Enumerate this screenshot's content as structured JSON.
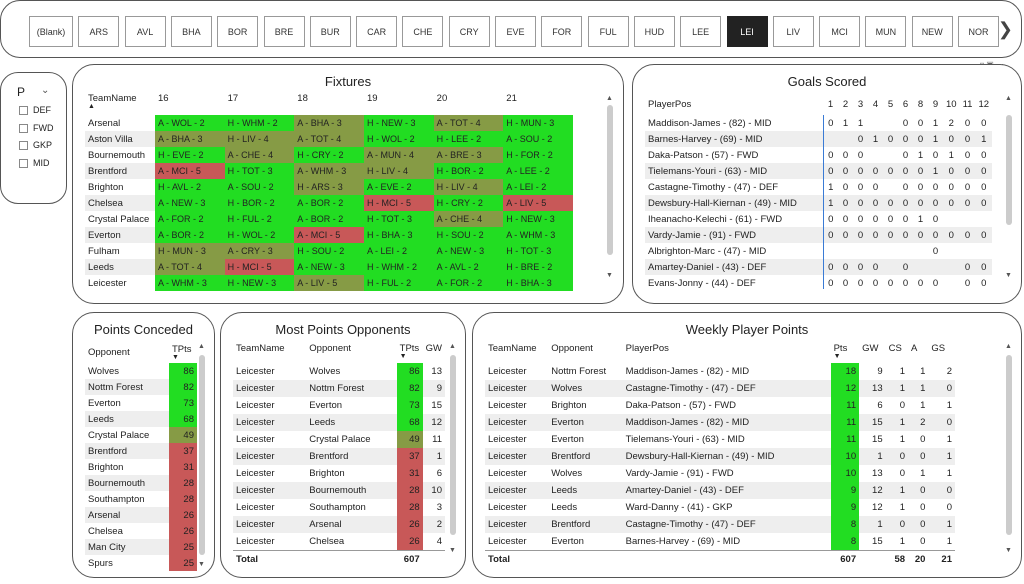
{
  "teams_slicer": {
    "teams": [
      "(Blank)",
      "ARS",
      "AVL",
      "BHA",
      "BOR",
      "BRE",
      "BUR",
      "CAR",
      "CHE",
      "CRY",
      "EVE",
      "FOR",
      "FUL",
      "HUD",
      "LEE",
      "LEI",
      "LIV",
      "MCI",
      "MUN",
      "NEW",
      "NOR"
    ],
    "selected": "LEI",
    "next_icon": "chevron-right-icon"
  },
  "position_slicer": {
    "title": "P",
    "options": [
      "DEF",
      "FWD",
      "GKP",
      "MID"
    ]
  },
  "fixtures": {
    "title": "Fixtures",
    "col_header": "TeamName",
    "gws": [
      "16",
      "17",
      "18",
      "19",
      "20",
      "21"
    ],
    "rows": [
      {
        "team": "Arsenal",
        "cells": [
          [
            "A - WOL - 2",
            "g"
          ],
          [
            "H - WHM - 2",
            "g"
          ],
          [
            "A - BHA - 3",
            "o"
          ],
          [
            "H - NEW - 3",
            "g"
          ],
          [
            "A - TOT - 4",
            "o"
          ],
          [
            "H - MUN - 3",
            "g"
          ]
        ]
      },
      {
        "team": "Aston Villa",
        "cells": [
          [
            "A - BHA - 3",
            "o"
          ],
          [
            "H - LIV - 4",
            "o"
          ],
          [
            "A - TOT - 4",
            "o"
          ],
          [
            "H - WOL - 2",
            "g"
          ],
          [
            "H - LEE - 2",
            "g"
          ],
          [
            "A - SOU - 2",
            "g"
          ]
        ]
      },
      {
        "team": "Bournemouth",
        "cells": [
          [
            "H - EVE - 2",
            "g"
          ],
          [
            "A - CHE - 4",
            "o"
          ],
          [
            "H - CRY - 2",
            "g"
          ],
          [
            "A - MUN - 4",
            "o"
          ],
          [
            "A - BRE - 3",
            "o"
          ],
          [
            "H - FOR - 2",
            "g"
          ]
        ]
      },
      {
        "team": "Brentford",
        "cells": [
          [
            "A - MCI - 5",
            "r"
          ],
          [
            "H - TOT - 3",
            "g"
          ],
          [
            "A - WHM - 3",
            "o"
          ],
          [
            "H - LIV - 4",
            "o"
          ],
          [
            "H - BOR - 2",
            "g"
          ],
          [
            "A - LEE - 2",
            "g"
          ]
        ]
      },
      {
        "team": "Brighton",
        "cells": [
          [
            "H - AVL - 2",
            "g"
          ],
          [
            "A - SOU - 2",
            "g"
          ],
          [
            "H - ARS - 3",
            "o"
          ],
          [
            "A - EVE - 2",
            "g"
          ],
          [
            "H - LIV - 4",
            "o"
          ],
          [
            "A - LEI - 2",
            "g"
          ]
        ]
      },
      {
        "team": "Chelsea",
        "cells": [
          [
            "A - NEW - 3",
            "g"
          ],
          [
            "H - BOR - 2",
            "g"
          ],
          [
            "A - BOR - 2",
            "g"
          ],
          [
            "H - MCI - 5",
            "r"
          ],
          [
            "H - CRY - 2",
            "g"
          ],
          [
            "A - LIV - 5",
            "r"
          ]
        ]
      },
      {
        "team": "Crystal Palace",
        "cells": [
          [
            "A - FOR - 2",
            "g"
          ],
          [
            "H - FUL - 2",
            "g"
          ],
          [
            "A - BOR - 2",
            "g"
          ],
          [
            "H - TOT - 3",
            "g"
          ],
          [
            "A - CHE - 4",
            "o"
          ],
          [
            "H - NEW - 3",
            "g"
          ]
        ]
      },
      {
        "team": "Everton",
        "cells": [
          [
            "A - BOR - 2",
            "g"
          ],
          [
            "H - WOL - 2",
            "g"
          ],
          [
            "A - MCI - 5",
            "r"
          ],
          [
            "H - BHA - 3",
            "g"
          ],
          [
            "H - SOU - 2",
            "g"
          ],
          [
            "A - WHM - 3",
            "g"
          ]
        ]
      },
      {
        "team": "Fulham",
        "cells": [
          [
            "H - MUN - 3",
            "o"
          ],
          [
            "A - CRY - 3",
            "o"
          ],
          [
            "H - SOU - 2",
            "g"
          ],
          [
            "A - LEI - 2",
            "g"
          ],
          [
            "A - NEW - 3",
            "g"
          ],
          [
            "H - TOT - 3",
            "g"
          ]
        ]
      },
      {
        "team": "Leeds",
        "cells": [
          [
            "A - TOT - 4",
            "o"
          ],
          [
            "H - MCI - 5",
            "r"
          ],
          [
            "A - NEW - 3",
            "g"
          ],
          [
            "H - WHM - 2",
            "g"
          ],
          [
            "A - AVL - 2",
            "g"
          ],
          [
            "H - BRE - 2",
            "g"
          ]
        ]
      },
      {
        "team": "Leicester",
        "cells": [
          [
            "A - WHM - 3",
            "g"
          ],
          [
            "H - NEW - 3",
            "g"
          ],
          [
            "A - LIV - 5",
            "o"
          ],
          [
            "H - FUL - 2",
            "g"
          ],
          [
            "A - FOR - 2",
            "g"
          ],
          [
            "H - BHA - 3",
            "g"
          ]
        ]
      }
    ]
  },
  "goals": {
    "title": "Goals Scored",
    "col_header": "PlayerPos",
    "gws": [
      "1",
      "2",
      "3",
      "4",
      "5",
      "6",
      "8",
      "9",
      "10",
      "11",
      "12"
    ],
    "rows": [
      [
        "Maddison-James - (82) - MID",
        [
          "0",
          "1",
          "1",
          "",
          "",
          "0",
          "0",
          "1",
          "2",
          "0",
          "0"
        ]
      ],
      [
        "Barnes-Harvey - (69) - MID",
        [
          "",
          "",
          "0",
          "1",
          "0",
          "0",
          "0",
          "1",
          "0",
          "0",
          "1"
        ]
      ],
      [
        "Daka-Patson - (57) - FWD",
        [
          "0",
          "0",
          "0",
          "",
          "",
          "0",
          "1",
          "0",
          "1",
          "0",
          "0"
        ]
      ],
      [
        "Tielemans-Youri - (63) - MID",
        [
          "0",
          "0",
          "0",
          "0",
          "0",
          "0",
          "0",
          "1",
          "0",
          "0",
          "0"
        ]
      ],
      [
        "Castagne-Timothy - (47) - DEF",
        [
          "1",
          "0",
          "0",
          "0",
          "",
          "0",
          "0",
          "0",
          "0",
          "0",
          "0"
        ]
      ],
      [
        "Dewsbury-Hall-Kiernan - (49) - MID",
        [
          "1",
          "0",
          "0",
          "0",
          "0",
          "0",
          "0",
          "0",
          "0",
          "0",
          "0"
        ]
      ],
      [
        "Iheanacho-Kelechi - (61) - FWD",
        [
          "0",
          "0",
          "0",
          "0",
          "0",
          "0",
          "1",
          "0",
          "",
          "",
          ""
        ]
      ],
      [
        "Vardy-Jamie - (91) - FWD",
        [
          "0",
          "0",
          "0",
          "0",
          "0",
          "0",
          "0",
          "0",
          "0",
          "0",
          "0"
        ]
      ],
      [
        "Albrighton-Marc - (47) - MID",
        [
          "",
          "",
          "",
          "",
          "",
          "",
          "",
          "0",
          "",
          "",
          ""
        ]
      ],
      [
        "Amartey-Daniel - (43) - DEF",
        [
          "0",
          "0",
          "0",
          "0",
          "",
          "0",
          "",
          "",
          "",
          "0",
          "0"
        ]
      ],
      [
        "Evans-Jonny - (44) - DEF",
        [
          "0",
          "0",
          "0",
          "0",
          "0",
          "0",
          "0",
          "0",
          "",
          "0",
          "0"
        ]
      ]
    ]
  },
  "points_conceded": {
    "title": "Points Conceded",
    "headers": [
      "Opponent",
      "TPts"
    ],
    "rows": [
      [
        "Wolves",
        "86"
      ],
      [
        "Nottm Forest",
        "82"
      ],
      [
        "Everton",
        "73"
      ],
      [
        "Leeds",
        "68"
      ],
      [
        "Crystal Palace",
        "49"
      ],
      [
        "Brentford",
        "37"
      ],
      [
        "Brighton",
        "31"
      ],
      [
        "Bournemouth",
        "28"
      ],
      [
        "Southampton",
        "28"
      ],
      [
        "Arsenal",
        "26"
      ],
      [
        "Chelsea",
        "26"
      ],
      [
        "Man City",
        "25"
      ],
      [
        "Spurs",
        "25"
      ]
    ]
  },
  "most_points": {
    "title": "Most Points Opponents",
    "headers": [
      "TeamName",
      "Opponent",
      "TPts",
      "GW"
    ],
    "rows": [
      [
        "Leicester",
        "Wolves",
        "86",
        "13"
      ],
      [
        "Leicester",
        "Nottm Forest",
        "82",
        "9"
      ],
      [
        "Leicester",
        "Everton",
        "73",
        "15"
      ],
      [
        "Leicester",
        "Leeds",
        "68",
        "12"
      ],
      [
        "Leicester",
        "Crystal Palace",
        "49",
        "11"
      ],
      [
        "Leicester",
        "Brentford",
        "37",
        "1"
      ],
      [
        "Leicester",
        "Brighton",
        "31",
        "6"
      ],
      [
        "Leicester",
        "Bournemouth",
        "28",
        "10"
      ],
      [
        "Leicester",
        "Southampton",
        "28",
        "3"
      ],
      [
        "Leicester",
        "Arsenal",
        "26",
        "2"
      ],
      [
        "Leicester",
        "Chelsea",
        "26",
        "4"
      ]
    ],
    "total_label": "Total",
    "total_value": "607"
  },
  "weekly": {
    "title": "Weekly Player Points",
    "headers": [
      "TeamName",
      "Opponent",
      "PlayerPos",
      "Pts",
      "GW",
      "CS",
      "A",
      "GS"
    ],
    "rows": [
      [
        "Leicester",
        "Nottm Forest",
        "Maddison-James - (82) - MID",
        "18",
        "9",
        "1",
        "1",
        "2"
      ],
      [
        "Leicester",
        "Wolves",
        "Castagne-Timothy - (47) - DEF",
        "12",
        "13",
        "1",
        "1",
        "0"
      ],
      [
        "Leicester",
        "Brighton",
        "Daka-Patson - (57) - FWD",
        "11",
        "6",
        "0",
        "1",
        "1"
      ],
      [
        "Leicester",
        "Everton",
        "Maddison-James - (82) - MID",
        "11",
        "15",
        "1",
        "2",
        "0"
      ],
      [
        "Leicester",
        "Everton",
        "Tielemans-Youri - (63) - MID",
        "11",
        "15",
        "1",
        "0",
        "1"
      ],
      [
        "Leicester",
        "Brentford",
        "Dewsbury-Hall-Kiernan - (49) - MID",
        "10",
        "1",
        "0",
        "0",
        "1"
      ],
      [
        "Leicester",
        "Wolves",
        "Vardy-Jamie - (91) - FWD",
        "10",
        "13",
        "0",
        "1",
        "1"
      ],
      [
        "Leicester",
        "Leeds",
        "Amartey-Daniel - (43) - DEF",
        "9",
        "12",
        "1",
        "0",
        "0"
      ],
      [
        "Leicester",
        "Leeds",
        "Ward-Danny - (41) - GKP",
        "9",
        "12",
        "1",
        "0",
        "0"
      ],
      [
        "Leicester",
        "Brentford",
        "Castagne-Timothy - (47) - DEF",
        "8",
        "1",
        "0",
        "0",
        "1"
      ],
      [
        "Leicester",
        "Everton",
        "Barnes-Harvey - (69) - MID",
        "8",
        "15",
        "1",
        "0",
        "1"
      ]
    ],
    "total_label": "Total",
    "totals": [
      "607",
      "",
      "58",
      "20",
      "21"
    ]
  },
  "colors": {
    "green": "#22dd22",
    "olive": "#869b45",
    "red": "#c85858"
  }
}
